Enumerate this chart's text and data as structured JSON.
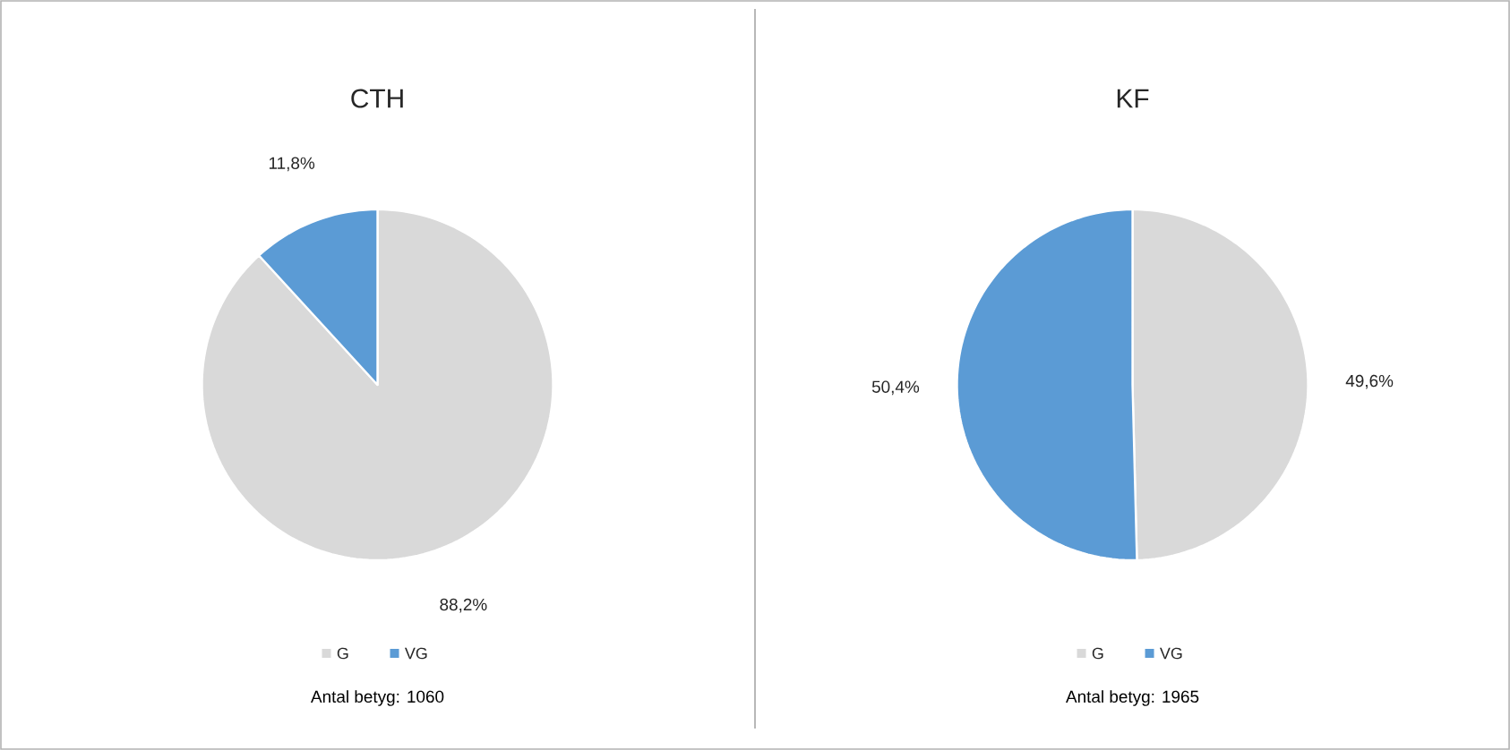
{
  "chart_data": [
    {
      "type": "pie",
      "title": "CTH",
      "categories": [
        "G",
        "VG"
      ],
      "values": [
        88.2,
        11.8
      ],
      "colors": [
        "#d9d9d9",
        "#5b9bd5"
      ],
      "value_labels": [
        "88,2%",
        "11,8%"
      ],
      "legend": "bottom",
      "annotations": [
        "Antal betyg: 1060"
      ]
    },
    {
      "type": "pie",
      "title": "KF",
      "categories": [
        "G",
        "VG"
      ],
      "values": [
        49.6,
        50.4
      ],
      "colors": [
        "#d9d9d9",
        "#5b9bd5"
      ],
      "value_labels": [
        "49,6%",
        "50,4%"
      ],
      "legend": "bottom",
      "annotations": [
        "Antal betyg: 1965"
      ]
    }
  ]
}
